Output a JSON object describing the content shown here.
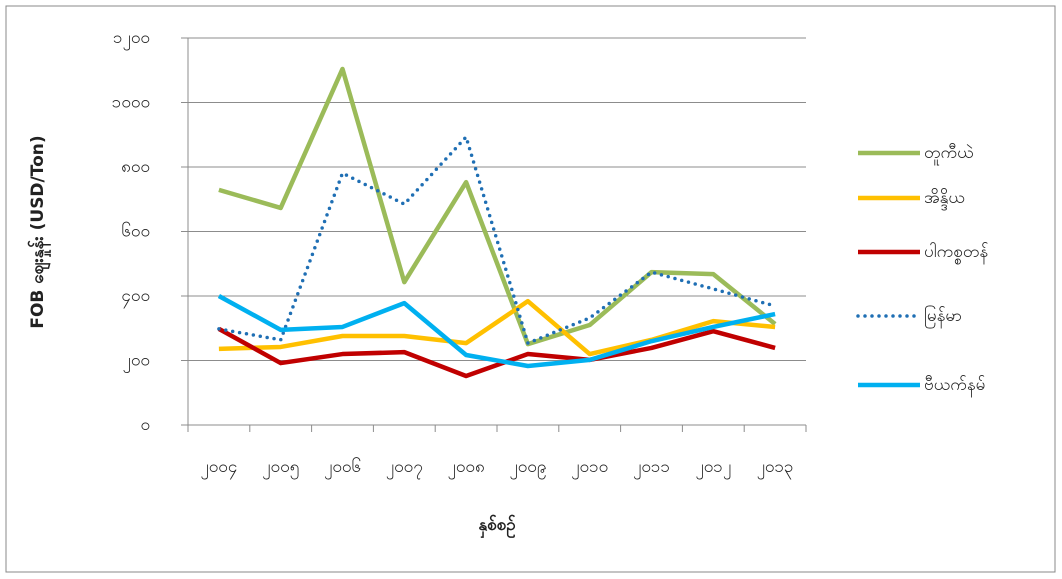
{
  "chart_data": {
    "type": "line",
    "x_label": "နှစ်စဉ်",
    "y_label": "FOB ဈေးနှုန်း (USD/Ton)",
    "categories": [
      "၂၀၀၄",
      "၂၀၀၅",
      "၂၀၀၆",
      "၂၀၀၇",
      "၂၀၀၈",
      "၂၀၀၉",
      "၂၀၁၀",
      "၂၀၁၁",
      "၂၀၁၂",
      "၂၀၁၃"
    ],
    "ylim": [
      0,
      1200
    ],
    "yticks": [
      {
        "value": 0,
        "label": "၀"
      },
      {
        "value": 200,
        "label": "၂၀၀"
      },
      {
        "value": 400,
        "label": "၄၀၀"
      },
      {
        "value": 600,
        "label": "၆၀၀"
      },
      {
        "value": 800,
        "label": "၈၀၀"
      },
      {
        "value": 1000,
        "label": "၁၀၀၀"
      },
      {
        "value": 1200,
        "label": "၁၂၀၀"
      }
    ],
    "grid": true,
    "legend": "right",
    "series": [
      {
        "name": "တူကီယဲ",
        "color": "#9bbb59",
        "style": "solid",
        "values": [
          729,
          673,
          1104,
          443,
          753,
          251,
          310,
          474,
          468,
          313
        ]
      },
      {
        "name": "အိန္ဒိယ",
        "color": "#ffc000",
        "style": "solid",
        "values": [
          236,
          242,
          276,
          276,
          254,
          384,
          220,
          264,
          322,
          304
        ]
      },
      {
        "name": "ပါကစ္စတန်",
        "color": "#c00000",
        "style": "solid",
        "values": [
          298,
          192,
          220,
          226,
          152,
          220,
          202,
          239,
          291,
          239
        ]
      },
      {
        "name": "မြန်မာ",
        "color": "#1f6fb4",
        "style": "dotted",
        "values": [
          298,
          264,
          781,
          685,
          893,
          254,
          332,
          474,
          422,
          369
        ]
      },
      {
        "name": "ဗီယက်နမ်",
        "color": "#00b0f0",
        "style": "solid",
        "values": [
          400,
          295,
          304,
          378,
          217,
          183,
          202,
          260,
          304,
          344
        ]
      }
    ]
  }
}
